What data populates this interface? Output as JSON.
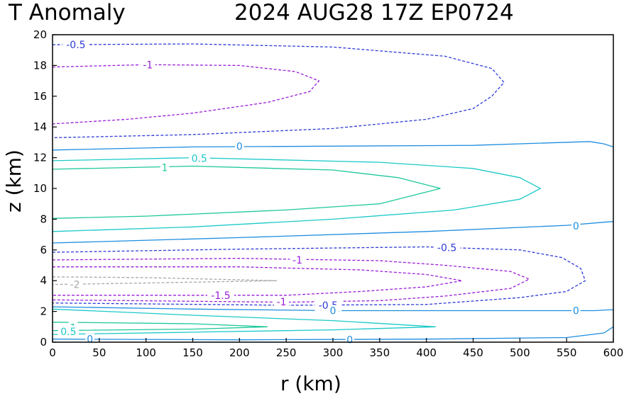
{
  "chart_data": {
    "type": "contour",
    "title_left": "T Anomaly",
    "title_right": "2024 AUG28 17Z   EP0724",
    "xlabel": "r (km)",
    "ylabel": "z (km)",
    "xlim": [
      0,
      600
    ],
    "ylim": [
      0,
      20
    ],
    "xticks": [
      0,
      50,
      100,
      150,
      200,
      250,
      300,
      350,
      400,
      450,
      500,
      550,
      600
    ],
    "yticks": [
      0,
      2,
      4,
      6,
      8,
      10,
      12,
      14,
      16,
      18,
      20
    ],
    "colors": {
      "-2": "#a8a8a8",
      "-1.5": "#9a1fd8",
      "-1": "#9a1fd8",
      "-0.5": "#2e3bd6",
      "0": "#1d8ee0",
      "0.5": "#1cc9c9",
      "1": "#1ec89a",
      "1.5": "#1ec89a"
    },
    "contours": [
      {
        "level": -0.5,
        "dashed": true,
        "points": [
          [
            0,
            19.35
          ],
          [
            150,
            19.4
          ],
          [
            300,
            19.2
          ],
          [
            420,
            18.6
          ],
          [
            470,
            17.8
          ],
          [
            483,
            16.9
          ],
          [
            470,
            16
          ],
          [
            450,
            15.2
          ],
          [
            400,
            14.5
          ],
          [
            300,
            13.9
          ],
          [
            150,
            13.5
          ],
          [
            0,
            13.3
          ]
        ]
      },
      {
        "level": -1,
        "dashed": true,
        "points": [
          [
            0,
            17.9
          ],
          [
            100,
            18.05
          ],
          [
            200,
            18
          ],
          [
            260,
            17.6
          ],
          [
            285,
            17
          ],
          [
            275,
            16.3
          ],
          [
            230,
            15.6
          ],
          [
            150,
            14.9
          ],
          [
            80,
            14.5
          ],
          [
            0,
            14.2
          ]
        ]
      },
      {
        "level": 0,
        "dashed": false,
        "points": [
          [
            0,
            12.5
          ],
          [
            150,
            12.7
          ],
          [
            300,
            12.75
          ],
          [
            450,
            12.8
          ],
          [
            575,
            13.05
          ],
          [
            590,
            12.9
          ],
          [
            605,
            12.7
          ]
        ]
      },
      {
        "level": 0.5,
        "dashed": false,
        "points": [
          [
            0,
            11.8
          ],
          [
            150,
            12
          ],
          [
            350,
            11.7
          ],
          [
            450,
            11.3
          ],
          [
            500,
            10.7
          ],
          [
            522,
            10
          ],
          [
            500,
            9.3
          ],
          [
            430,
            8.6
          ],
          [
            300,
            8
          ],
          [
            150,
            7.5
          ],
          [
            0,
            7.2
          ]
        ]
      },
      {
        "level": 1,
        "dashed": false,
        "points": [
          [
            0,
            11.25
          ],
          [
            150,
            11.45
          ],
          [
            300,
            11.2
          ],
          [
            370,
            10.7
          ],
          [
            415,
            10
          ],
          [
            350,
            9
          ],
          [
            250,
            8.6
          ],
          [
            100,
            8.2
          ],
          [
            0,
            8.05
          ]
        ]
      },
      {
        "level": 0,
        "dashed": false,
        "points": [
          [
            0,
            6.45
          ],
          [
            200,
            6.8
          ],
          [
            400,
            7.2
          ],
          [
            550,
            7.6
          ],
          [
            590,
            7.8
          ],
          [
            605,
            7.85
          ]
        ]
      },
      {
        "level": -0.5,
        "dashed": true,
        "points": [
          [
            0,
            5.85
          ],
          [
            200,
            6.05
          ],
          [
            400,
            6.2
          ],
          [
            500,
            6
          ],
          [
            545,
            5.5
          ],
          [
            565,
            4.8
          ],
          [
            570,
            4
          ],
          [
            550,
            3.3
          ],
          [
            500,
            2.9
          ],
          [
            400,
            2.45
          ],
          [
            250,
            2.4
          ],
          [
            0,
            2.55
          ]
        ]
      },
      {
        "level": -1,
        "dashed": true,
        "points": [
          [
            0,
            5.35
          ],
          [
            200,
            5.45
          ],
          [
            350,
            5.3
          ],
          [
            420,
            5
          ],
          [
            490,
            4.6
          ],
          [
            510,
            4.1
          ],
          [
            490,
            3.5
          ],
          [
            420,
            3
          ],
          [
            350,
            2.7
          ],
          [
            250,
            2.6
          ],
          [
            0,
            2.75
          ]
        ]
      },
      {
        "level": -1.5,
        "dashed": true,
        "points": [
          [
            0,
            4.9
          ],
          [
            200,
            4.9
          ],
          [
            330,
            4.7
          ],
          [
            400,
            4.4
          ],
          [
            438,
            4
          ],
          [
            400,
            3.6
          ],
          [
            330,
            3.3
          ],
          [
            250,
            3.05
          ],
          [
            0,
            3.05
          ]
        ]
      },
      {
        "level": -2,
        "dashed": true,
        "points": [
          [
            0,
            4.25
          ],
          [
            100,
            4.2
          ],
          [
            240,
            4
          ],
          [
            100,
            3.85
          ],
          [
            0,
            3.75
          ]
        ]
      },
      {
        "level": 0,
        "dashed": false,
        "points": [
          [
            0,
            2.3
          ],
          [
            150,
            2.15
          ],
          [
            300,
            2.05
          ],
          [
            450,
            2.05
          ],
          [
            580,
            2.05
          ],
          [
            595,
            2.1
          ],
          [
            605,
            2.1
          ]
        ]
      },
      {
        "level": 0.5,
        "dashed": false,
        "points": [
          [
            0,
            2.15
          ],
          [
            150,
            1.75
          ],
          [
            300,
            1.4
          ],
          [
            410,
            1
          ],
          [
            300,
            0.8
          ],
          [
            150,
            0.65
          ],
          [
            0,
            0.5
          ]
        ]
      },
      {
        "level": 1,
        "dashed": false,
        "points": [
          [
            0,
            1.3
          ],
          [
            150,
            1.2
          ],
          [
            230,
            1
          ],
          [
            150,
            0.85
          ],
          [
            0,
            0.75
          ]
        ]
      },
      {
        "level": 0,
        "dashed": false,
        "points": [
          [
            0,
            0.2
          ],
          [
            200,
            0.15
          ],
          [
            400,
            0.2
          ],
          [
            550,
            0.3
          ],
          [
            590,
            0.6
          ],
          [
            605,
            1
          ]
        ]
      }
    ],
    "contour_labels": [
      {
        "text": "-0.5",
        "level": -0.5,
        "x": 25,
        "y": 19.35
      },
      {
        "text": "-1",
        "level": -1,
        "x": 102,
        "y": 18.05
      },
      {
        "text": "0",
        "level": 0,
        "x": 200,
        "y": 12.75
      },
      {
        "text": "0.5",
        "level": 0.5,
        "x": 157,
        "y": 11.95
      },
      {
        "text": "1",
        "level": 1,
        "x": 120,
        "y": 11.35
      },
      {
        "text": "0",
        "level": 0,
        "x": 560,
        "y": 7.55
      },
      {
        "text": "-0.5",
        "level": -0.5,
        "x": 422,
        "y": 6.15
      },
      {
        "text": "-1",
        "level": -1,
        "x": 262,
        "y": 5.35
      },
      {
        "text": "-2",
        "level": -2,
        "x": 24,
        "y": 3.75
      },
      {
        "text": "-1.5",
        "level": -1.5,
        "x": 180,
        "y": 3.05
      },
      {
        "text": "-1",
        "level": -1,
        "x": 245,
        "y": 2.62
      },
      {
        "text": "-0.5",
        "level": -0.5,
        "x": 295,
        "y": 2.4
      },
      {
        "text": "0",
        "level": 0,
        "x": 300,
        "y": 2.05
      },
      {
        "text": "0",
        "level": 0,
        "x": 560,
        "y": 2.05
      },
      {
        "text": "1",
        "level": 1,
        "x": 22,
        "y": 0.95
      },
      {
        "text": "0.5",
        "level": 0.5,
        "x": 17,
        "y": 0.7
      },
      {
        "text": "0",
        "level": 0,
        "x": 40,
        "y": 0.2
      },
      {
        "text": "0",
        "level": 0,
        "x": 318,
        "y": 0.15
      }
    ]
  }
}
